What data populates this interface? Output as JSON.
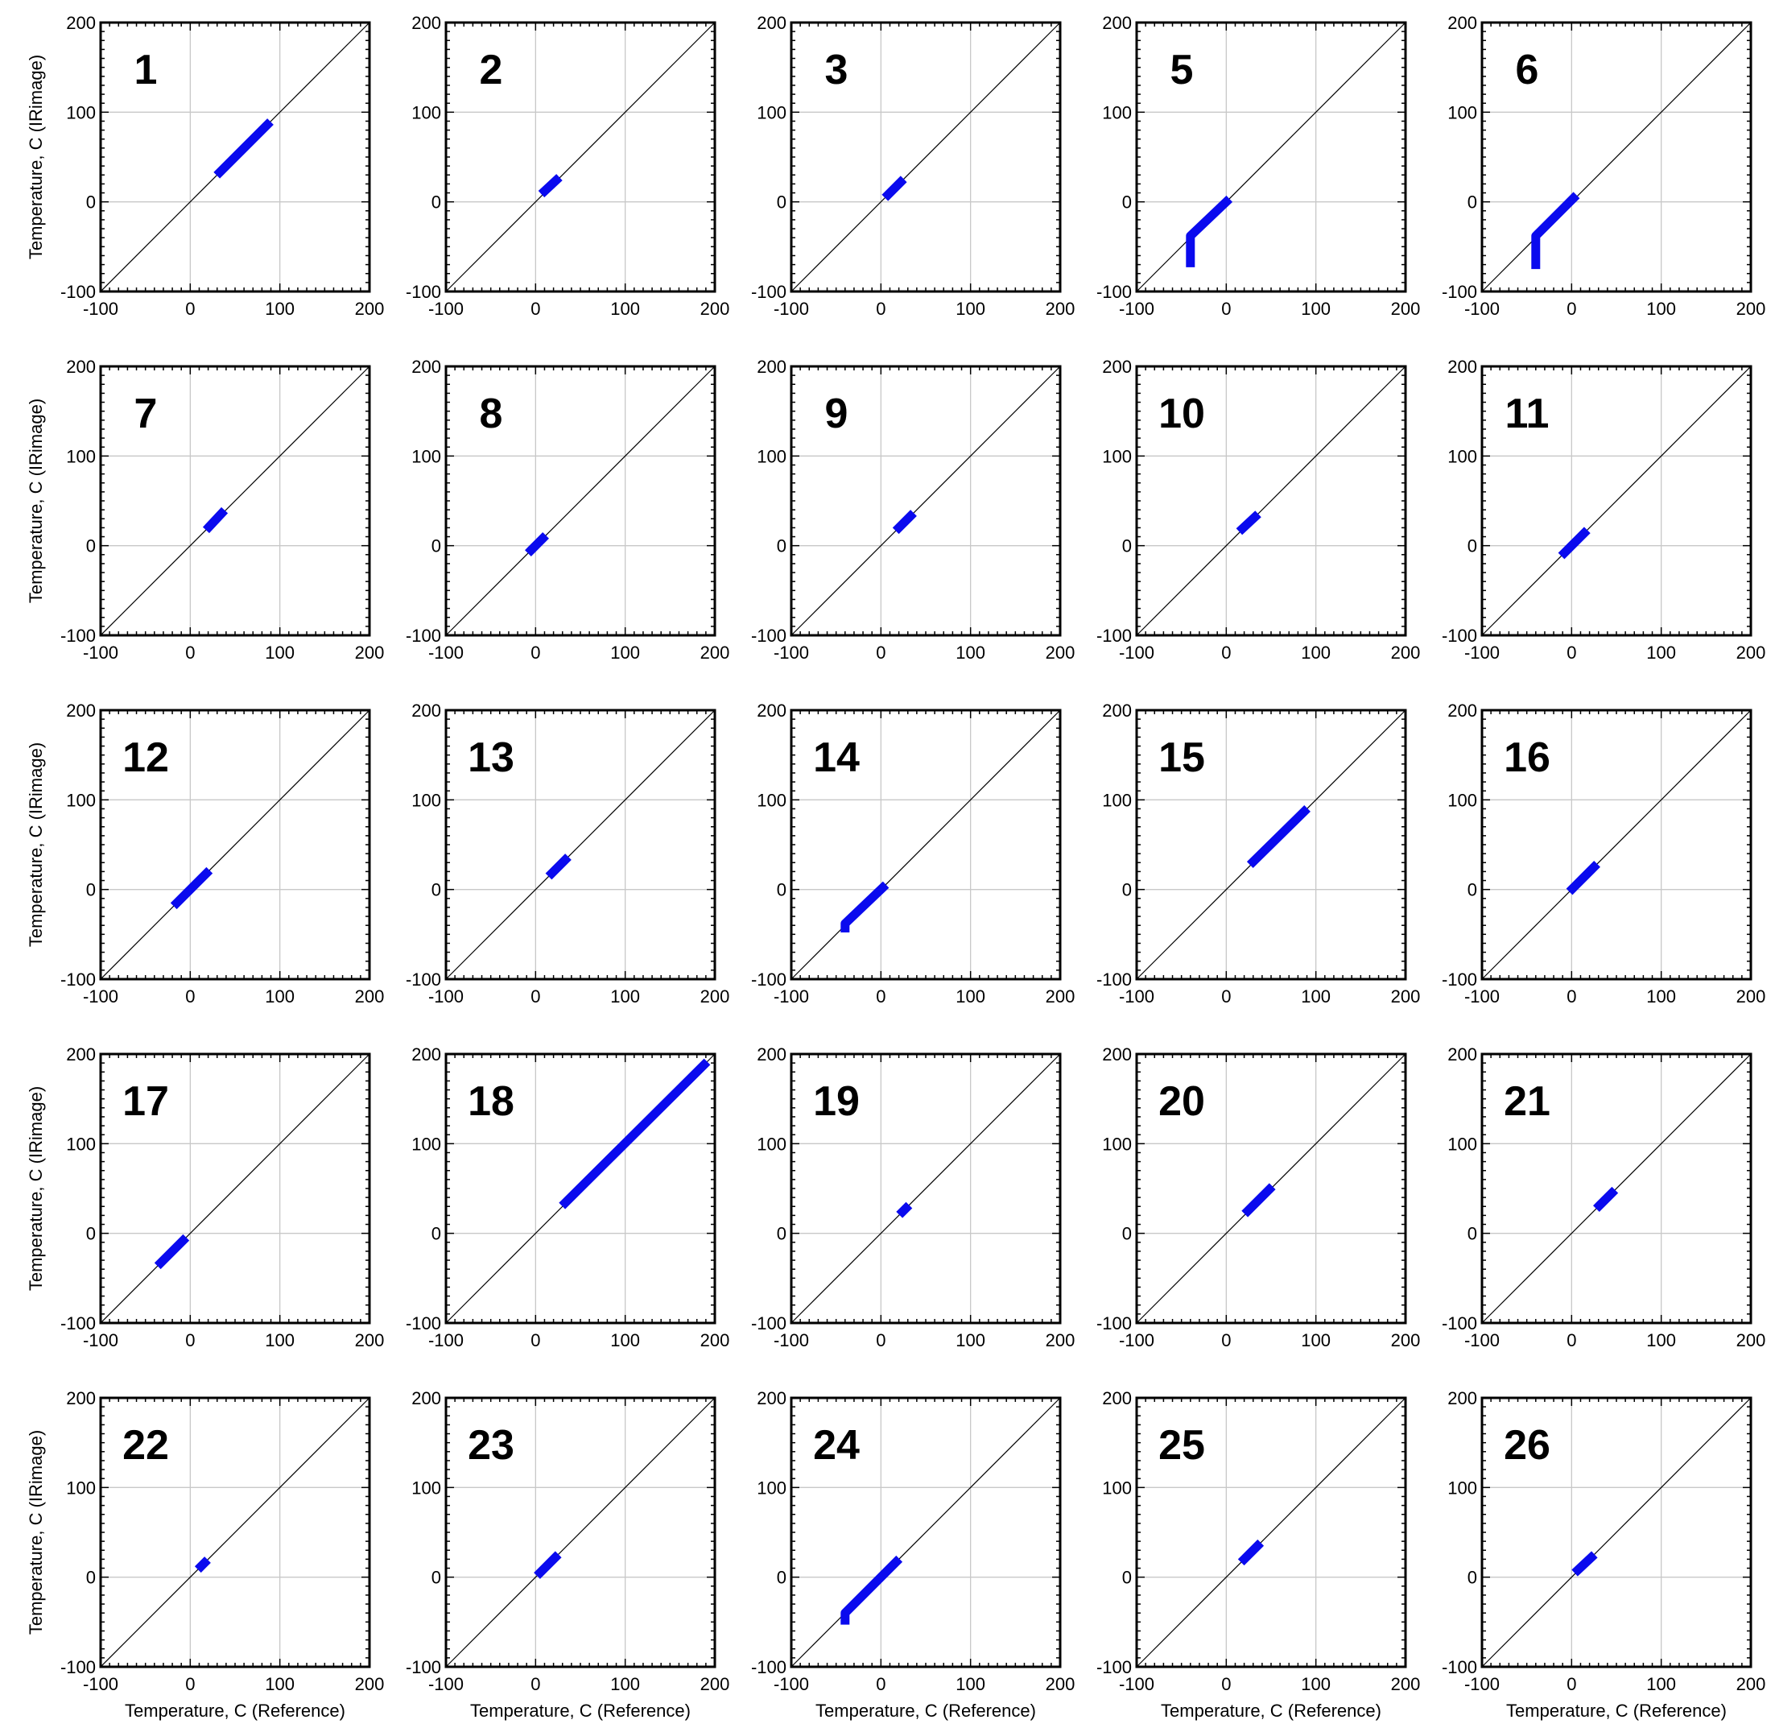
{
  "figure": {
    "xlabel": "Temperature, C (Reference)",
    "ylabel": "Temperature, C (IRimage)"
  },
  "chart_data": [
    {
      "type": "scatter",
      "panel_label": "1",
      "xlim": [
        -100,
        200
      ],
      "ylim": [
        -100,
        200
      ],
      "xticks": [
        -100,
        0,
        100,
        200
      ],
      "yticks": [
        -100,
        0,
        100,
        200
      ],
      "grid": true,
      "series": [
        {
          "color": "#0a0aee",
          "points": [
            [
              33,
              33
            ],
            [
              86,
              86
            ]
          ]
        }
      ],
      "reference_line": [
        [
          -100,
          -100
        ],
        [
          200,
          200
        ]
      ]
    },
    {
      "type": "scatter",
      "panel_label": "2",
      "xlim": [
        -100,
        200
      ],
      "ylim": [
        -100,
        200
      ],
      "xticks": [
        -100,
        0,
        100,
        200
      ],
      "yticks": [
        -100,
        0,
        100,
        200
      ],
      "grid": true,
      "series": [
        {
          "color": "#0a0aee",
          "points": [
            [
              10,
              12
            ],
            [
              23,
              24
            ]
          ]
        }
      ],
      "reference_line": [
        [
          -100,
          -100
        ],
        [
          200,
          200
        ]
      ]
    },
    {
      "type": "scatter",
      "panel_label": "3",
      "xlim": [
        -100,
        200
      ],
      "ylim": [
        -100,
        200
      ],
      "xticks": [
        -100,
        0,
        100,
        200
      ],
      "yticks": [
        -100,
        0,
        100,
        200
      ],
      "grid": true,
      "series": [
        {
          "color": "#0a0aee",
          "points": [
            [
              8,
              8
            ],
            [
              22,
              22
            ]
          ]
        }
      ],
      "reference_line": [
        [
          -100,
          -100
        ],
        [
          200,
          200
        ]
      ]
    },
    {
      "type": "scatter",
      "panel_label": "5",
      "xlim": [
        -100,
        200
      ],
      "ylim": [
        -100,
        200
      ],
      "xticks": [
        -100,
        0,
        100,
        200
      ],
      "yticks": [
        -100,
        0,
        100,
        200
      ],
      "grid": true,
      "series": [
        {
          "color": "#0a0aee",
          "points": [
            [
              -40,
              -68
            ],
            [
              -40,
              -38
            ],
            [
              0,
              0
            ]
          ]
        }
      ],
      "reference_line": [
        [
          -100,
          -100
        ],
        [
          200,
          200
        ]
      ]
    },
    {
      "type": "scatter",
      "panel_label": "6",
      "xlim": [
        -100,
        200
      ],
      "ylim": [
        -100,
        200
      ],
      "xticks": [
        -100,
        0,
        100,
        200
      ],
      "yticks": [
        -100,
        0,
        100,
        200
      ],
      "grid": true,
      "series": [
        {
          "color": "#0a0aee",
          "points": [
            [
              -40,
              -70
            ],
            [
              -40,
              -38
            ],
            [
              2,
              4
            ]
          ]
        }
      ],
      "reference_line": [
        [
          -100,
          -100
        ],
        [
          200,
          200
        ]
      ]
    },
    {
      "type": "scatter",
      "panel_label": "7",
      "xlim": [
        -100,
        200
      ],
      "ylim": [
        -100,
        200
      ],
      "xticks": [
        -100,
        0,
        100,
        200
      ],
      "yticks": [
        -100,
        0,
        100,
        200
      ],
      "grid": true,
      "series": [
        {
          "color": "#0a0aee",
          "points": [
            [
              21,
              21
            ],
            [
              35,
              36
            ]
          ]
        }
      ],
      "reference_line": [
        [
          -100,
          -100
        ],
        [
          200,
          200
        ]
      ]
    },
    {
      "type": "scatter",
      "panel_label": "8",
      "xlim": [
        -100,
        200
      ],
      "ylim": [
        -100,
        200
      ],
      "xticks": [
        -100,
        0,
        100,
        200
      ],
      "yticks": [
        -100,
        0,
        100,
        200
      ],
      "grid": true,
      "series": [
        {
          "color": "#0a0aee",
          "points": [
            [
              -5,
              -5
            ],
            [
              8,
              8
            ]
          ]
        }
      ],
      "reference_line": [
        [
          -100,
          -100
        ],
        [
          200,
          200
        ]
      ]
    },
    {
      "type": "scatter",
      "panel_label": "9",
      "xlim": [
        -100,
        200
      ],
      "ylim": [
        -100,
        200
      ],
      "xticks": [
        -100,
        0,
        100,
        200
      ],
      "yticks": [
        -100,
        0,
        100,
        200
      ],
      "grid": true,
      "series": [
        {
          "color": "#0a0aee",
          "points": [
            [
              20,
              20
            ],
            [
              33,
              33
            ]
          ]
        }
      ],
      "reference_line": [
        [
          -100,
          -100
        ],
        [
          200,
          200
        ]
      ]
    },
    {
      "type": "scatter",
      "panel_label": "10",
      "xlim": [
        -100,
        200
      ],
      "ylim": [
        -100,
        200
      ],
      "xticks": [
        -100,
        0,
        100,
        200
      ],
      "yticks": [
        -100,
        0,
        100,
        200
      ],
      "grid": true,
      "series": [
        {
          "color": "#0a0aee",
          "points": [
            [
              18,
              19
            ],
            [
              32,
              32
            ]
          ]
        }
      ],
      "reference_line": [
        [
          -100,
          -100
        ],
        [
          200,
          200
        ]
      ]
    },
    {
      "type": "scatter",
      "panel_label": "11",
      "xlim": [
        -100,
        200
      ],
      "ylim": [
        -100,
        200
      ],
      "xticks": [
        -100,
        0,
        100,
        200
      ],
      "yticks": [
        -100,
        0,
        100,
        200
      ],
      "grid": true,
      "series": [
        {
          "color": "#0a0aee",
          "points": [
            [
              -8,
              -8
            ],
            [
              14,
              14
            ]
          ]
        }
      ],
      "reference_line": [
        [
          -100,
          -100
        ],
        [
          200,
          200
        ]
      ]
    },
    {
      "type": "scatter",
      "panel_label": "12",
      "xlim": [
        -100,
        200
      ],
      "ylim": [
        -100,
        200
      ],
      "xticks": [
        -100,
        0,
        100,
        200
      ],
      "yticks": [
        -100,
        0,
        100,
        200
      ],
      "grid": true,
      "series": [
        {
          "color": "#0a0aee",
          "points": [
            [
              -15,
              -15
            ],
            [
              18,
              18
            ]
          ]
        }
      ],
      "reference_line": [
        [
          -100,
          -100
        ],
        [
          200,
          200
        ]
      ]
    },
    {
      "type": "scatter",
      "panel_label": "13",
      "xlim": [
        -100,
        200
      ],
      "ylim": [
        -100,
        200
      ],
      "xticks": [
        -100,
        0,
        100,
        200
      ],
      "yticks": [
        -100,
        0,
        100,
        200
      ],
      "grid": true,
      "series": [
        {
          "color": "#0a0aee",
          "points": [
            [
              18,
              18
            ],
            [
              33,
              33
            ]
          ]
        }
      ],
      "reference_line": [
        [
          -100,
          -100
        ],
        [
          200,
          200
        ]
      ]
    },
    {
      "type": "scatter",
      "panel_label": "14",
      "xlim": [
        -100,
        200
      ],
      "ylim": [
        -100,
        200
      ],
      "xticks": [
        -100,
        0,
        100,
        200
      ],
      "yticks": [
        -100,
        0,
        100,
        200
      ],
      "grid": true,
      "series": [
        {
          "color": "#0a0aee",
          "points": [
            [
              -40,
              -43
            ],
            [
              -40,
              -38
            ],
            [
              2,
              2
            ]
          ]
        }
      ],
      "reference_line": [
        [
          -100,
          -100
        ],
        [
          200,
          200
        ]
      ]
    },
    {
      "type": "scatter",
      "panel_label": "15",
      "xlim": [
        -100,
        200
      ],
      "ylim": [
        -100,
        200
      ],
      "xticks": [
        -100,
        0,
        100,
        200
      ],
      "yticks": [
        -100,
        0,
        100,
        200
      ],
      "grid": true,
      "series": [
        {
          "color": "#0a0aee",
          "points": [
            [
              30,
              31
            ],
            [
              87,
              87
            ]
          ]
        }
      ],
      "reference_line": [
        [
          -100,
          -100
        ],
        [
          200,
          200
        ]
      ]
    },
    {
      "type": "scatter",
      "panel_label": "16",
      "xlim": [
        -100,
        200
      ],
      "ylim": [
        -100,
        200
      ],
      "xticks": [
        -100,
        0,
        100,
        200
      ],
      "yticks": [
        -100,
        0,
        100,
        200
      ],
      "grid": true,
      "series": [
        {
          "color": "#0a0aee",
          "points": [
            [
              1,
              1
            ],
            [
              25,
              25
            ]
          ]
        }
      ],
      "reference_line": [
        [
          -100,
          -100
        ],
        [
          200,
          200
        ]
      ]
    },
    {
      "type": "scatter",
      "panel_label": "17",
      "xlim": [
        -100,
        200
      ],
      "ylim": [
        -100,
        200
      ],
      "xticks": [
        -100,
        0,
        100,
        200
      ],
      "yticks": [
        -100,
        0,
        100,
        200
      ],
      "grid": true,
      "series": [
        {
          "color": "#0a0aee",
          "points": [
            [
              -33,
              -33
            ],
            [
              -8,
              -8
            ]
          ]
        }
      ],
      "reference_line": [
        [
          -100,
          -100
        ],
        [
          200,
          200
        ]
      ]
    },
    {
      "type": "scatter",
      "panel_label": "18",
      "xlim": [
        -100,
        200
      ],
      "ylim": [
        -100,
        200
      ],
      "xticks": [
        -100,
        0,
        100,
        200
      ],
      "yticks": [
        -100,
        0,
        100,
        200
      ],
      "grid": true,
      "series": [
        {
          "color": "#0a0aee",
          "points": [
            [
              33,
              34
            ],
            [
              188,
              188
            ]
          ]
        }
      ],
      "reference_line": [
        [
          -100,
          -100
        ],
        [
          200,
          200
        ]
      ]
    },
    {
      "type": "scatter",
      "panel_label": "19",
      "xlim": [
        -100,
        200
      ],
      "ylim": [
        -100,
        200
      ],
      "xticks": [
        -100,
        0,
        100,
        200
      ],
      "yticks": [
        -100,
        0,
        100,
        200
      ],
      "grid": true,
      "series": [
        {
          "color": "#0a0aee",
          "points": [
            [
              24,
              24
            ],
            [
              28,
              28
            ]
          ]
        }
      ],
      "reference_line": [
        [
          -100,
          -100
        ],
        [
          200,
          200
        ]
      ]
    },
    {
      "type": "scatter",
      "panel_label": "20",
      "xlim": [
        -100,
        200
      ],
      "ylim": [
        -100,
        200
      ],
      "xticks": [
        -100,
        0,
        100,
        200
      ],
      "yticks": [
        -100,
        0,
        100,
        200
      ],
      "grid": true,
      "series": [
        {
          "color": "#0a0aee",
          "points": [
            [
              24,
              25
            ],
            [
              48,
              49
            ]
          ]
        }
      ],
      "reference_line": [
        [
          -100,
          -100
        ],
        [
          200,
          200
        ]
      ]
    },
    {
      "type": "scatter",
      "panel_label": "21",
      "xlim": [
        -100,
        200
      ],
      "ylim": [
        -100,
        200
      ],
      "xticks": [
        -100,
        0,
        100,
        200
      ],
      "yticks": [
        -100,
        0,
        100,
        200
      ],
      "grid": true,
      "series": [
        {
          "color": "#0a0aee",
          "points": [
            [
              31,
              31
            ],
            [
              45,
              45
            ]
          ]
        }
      ],
      "reference_line": [
        [
          -100,
          -100
        ],
        [
          200,
          200
        ]
      ]
    },
    {
      "type": "scatter",
      "panel_label": "22",
      "xlim": [
        -100,
        200
      ],
      "ylim": [
        -100,
        200
      ],
      "xticks": [
        -100,
        0,
        100,
        200
      ],
      "yticks": [
        -100,
        0,
        100,
        200
      ],
      "grid": true,
      "series": [
        {
          "color": "#0a0aee",
          "points": [
            [
              12,
              12
            ],
            [
              16,
              16
            ]
          ]
        }
      ],
      "reference_line": [
        [
          -100,
          -100
        ],
        [
          200,
          200
        ]
      ]
    },
    {
      "type": "scatter",
      "panel_label": "23",
      "xlim": [
        -100,
        200
      ],
      "ylim": [
        -100,
        200
      ],
      "xticks": [
        -100,
        0,
        100,
        200
      ],
      "yticks": [
        -100,
        0,
        100,
        200
      ],
      "grid": true,
      "series": [
        {
          "color": "#0a0aee",
          "points": [
            [
              5,
              5
            ],
            [
              22,
              22
            ]
          ]
        }
      ],
      "reference_line": [
        [
          -100,
          -100
        ],
        [
          200,
          200
        ]
      ]
    },
    {
      "type": "scatter",
      "panel_label": "24",
      "xlim": [
        -100,
        200
      ],
      "ylim": [
        -100,
        200
      ],
      "xticks": [
        -100,
        0,
        100,
        200
      ],
      "yticks": [
        -100,
        0,
        100,
        200
      ],
      "grid": true,
      "series": [
        {
          "color": "#0a0aee",
          "points": [
            [
              -40,
              -48
            ],
            [
              -40,
              -40
            ],
            [
              17,
              17
            ]
          ]
        }
      ],
      "reference_line": [
        [
          -100,
          -100
        ],
        [
          200,
          200
        ]
      ]
    },
    {
      "type": "scatter",
      "panel_label": "25",
      "xlim": [
        -100,
        200
      ],
      "ylim": [
        -100,
        200
      ],
      "xticks": [
        -100,
        0,
        100,
        200
      ],
      "yticks": [
        -100,
        0,
        100,
        200
      ],
      "grid": true,
      "series": [
        {
          "color": "#0a0aee",
          "points": [
            [
              20,
              20
            ],
            [
              35,
              35
            ]
          ]
        }
      ],
      "reference_line": [
        [
          -100,
          -100
        ],
        [
          200,
          200
        ]
      ]
    },
    {
      "type": "scatter",
      "panel_label": "26",
      "xlim": [
        -100,
        200
      ],
      "ylim": [
        -100,
        200
      ],
      "xticks": [
        -100,
        0,
        100,
        200
      ],
      "yticks": [
        -100,
        0,
        100,
        200
      ],
      "grid": true,
      "series": [
        {
          "color": "#0a0aee",
          "points": [
            [
              7,
              8
            ],
            [
              22,
              22
            ]
          ]
        }
      ],
      "reference_line": [
        [
          -100,
          -100
        ],
        [
          200,
          200
        ]
      ]
    }
  ]
}
